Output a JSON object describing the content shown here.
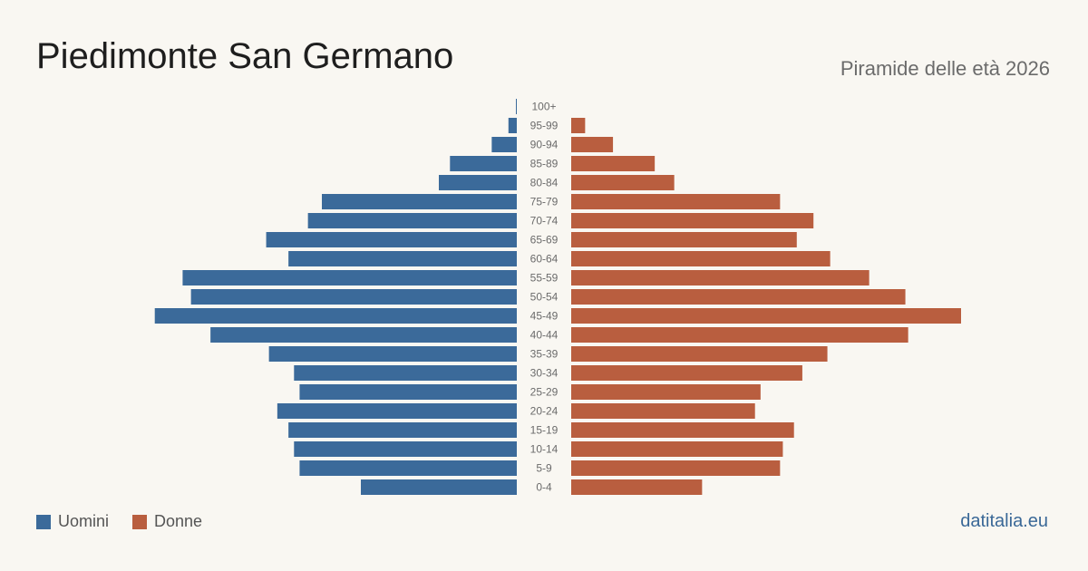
{
  "title": "Piedimonte  San Germano",
  "subtitle": "Piramide delle età 2026",
  "source": "datitalia.eu",
  "colors": {
    "men": "#3b6a9a",
    "women": "#b95e3f",
    "background": "#f9f7f2"
  },
  "legend": [
    {
      "label": "Uomini",
      "color": "#3b6a9a"
    },
    {
      "label": "Donne",
      "color": "#b95e3f"
    }
  ],
  "chart_data": {
    "type": "bar",
    "orientation": "horizontal-pyramid",
    "categories": [
      "100+",
      "95-99",
      "90-94",
      "85-89",
      "80-84",
      "75-79",
      "70-74",
      "65-69",
      "60-64",
      "55-59",
      "50-54",
      "45-49",
      "40-44",
      "35-39",
      "30-34",
      "25-29",
      "20-24",
      "15-19",
      "10-14",
      "5-9",
      "0-4"
    ],
    "series": [
      {
        "name": "Uomini",
        "values": [
          0.3,
          3,
          9,
          24,
          28,
          70,
          75,
          90,
          82,
          120,
          117,
          130,
          110,
          89,
          80,
          78,
          86,
          82,
          80,
          78,
          56
        ]
      },
      {
        "name": "Donne",
        "values": [
          0,
          5,
          15,
          30,
          37,
          75,
          87,
          81,
          93,
          107,
          120,
          140,
          121,
          92,
          83,
          68,
          66,
          80,
          76,
          75,
          47
        ]
      }
    ],
    "xmax": 140,
    "grid": false,
    "legend_position": "bottom-left"
  }
}
